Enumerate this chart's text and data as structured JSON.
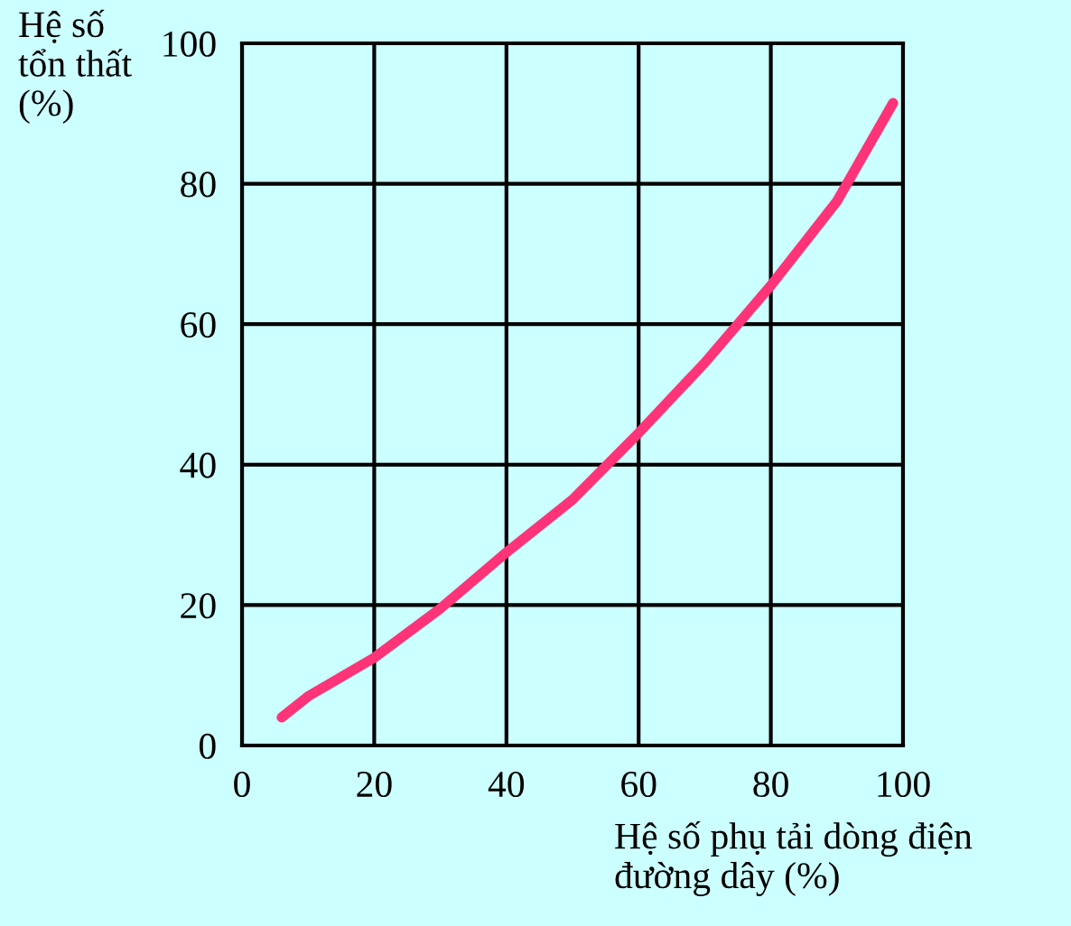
{
  "chart_data": {
    "type": "line",
    "xlabel": "Hệ số phụ tải dòng điện\nđường dây (%)",
    "ylabel": "Hệ số\ntổn thất\n(%)",
    "x": [
      6,
      10,
      20,
      30,
      40,
      50,
      60,
      70,
      80,
      90,
      98.5
    ],
    "series": [
      {
        "color": "#ff3377",
        "values": [
          4,
          7,
          12.5,
          19.5,
          27.5,
          35,
          44.5,
          54.5,
          65.5,
          77.5,
          91.5
        ]
      }
    ],
    "xlim": [
      0,
      100
    ],
    "ylim": [
      0,
      100
    ],
    "xticks": [
      0,
      20,
      40,
      60,
      80,
      100
    ],
    "yticks": [
      0,
      20,
      40,
      60,
      80,
      100
    ],
    "grid": true,
    "marker": "none",
    "line_style": "solid"
  }
}
